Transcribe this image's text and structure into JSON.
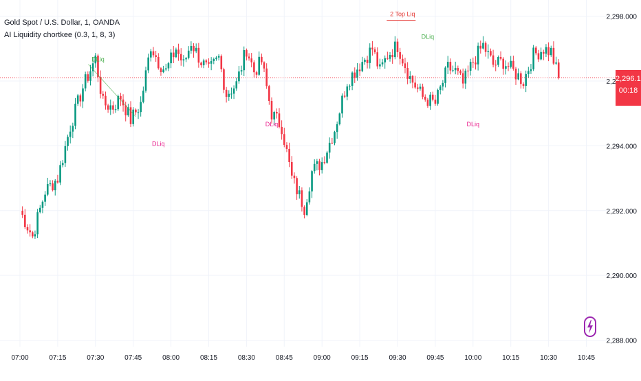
{
  "header": {
    "symbol_title": "Gold Spot / U.S. Dollar, 1, OANDA",
    "indicator_label": "AI Liquidity chortkee (0.3, 1, 8, 3)"
  },
  "price_tag": {
    "price": "2,296.100",
    "countdown": "00:18",
    "color": "#f23645"
  },
  "colors": {
    "up": "#089981",
    "down": "#f23645",
    "grid": "#f0f3fa",
    "dliq_green": "#4caf50",
    "dliq_pink": "#e91e8c",
    "bolt": "#9c27b0"
  },
  "icons": {
    "bolt": "lightning-bolt-icon"
  },
  "chart_data": {
    "type": "candlestick",
    "x_tick_labels": [
      "07:00",
      "07:15",
      "07:30",
      "07:45",
      "08:00",
      "08:15",
      "08:30",
      "08:45",
      "09:00",
      "09:15",
      "09:30",
      "09:45",
      "10:00",
      "10:15",
      "10:30",
      "10:45"
    ],
    "y_tick_labels": [
      "2,298.000",
      "2,296.000",
      "2,294.000",
      "2,292.000",
      "2,290.000",
      "2,288.000"
    ],
    "ylim": [
      2287.8,
      2298.5
    ],
    "grid": true,
    "last_price": 2296.1,
    "anchor_closes": [
      [
        0,
        2292.0
      ],
      [
        5,
        2291.2
      ],
      [
        10,
        2292.6
      ],
      [
        15,
        2293.0
      ],
      [
        20,
        2294.6
      ],
      [
        25,
        2295.8
      ],
      [
        30,
        2296.7
      ],
      [
        33,
        2295.3
      ],
      [
        37,
        2295.2
      ],
      [
        40,
        2295.5
      ],
      [
        44,
        2294.8
      ],
      [
        48,
        2295.3
      ],
      [
        52,
        2297.1
      ],
      [
        55,
        2296.6
      ],
      [
        58,
        2296.3
      ],
      [
        62,
        2297.0
      ],
      [
        65,
        2296.5
      ],
      [
        68,
        2297.2
      ],
      [
        72,
        2296.6
      ],
      [
        75,
        2296.3
      ],
      [
        79,
        2296.7
      ],
      [
        82,
        2295.6
      ],
      [
        86,
        2295.9
      ],
      [
        90,
        2297.0
      ],
      [
        93,
        2296.3
      ],
      [
        96,
        2296.6
      ],
      [
        100,
        2295.0
      ],
      [
        104,
        2294.6
      ],
      [
        108,
        2293.0
      ],
      [
        113,
        2292.1
      ],
      [
        116,
        2293.2
      ],
      [
        120,
        2293.5
      ],
      [
        125,
        2294.5
      ],
      [
        130,
        2296.0
      ],
      [
        135,
        2296.5
      ],
      [
        140,
        2297.0
      ],
      [
        143,
        2296.3
      ],
      [
        146,
        2296.8
      ],
      [
        150,
        2297.1
      ],
      [
        155,
        2296.1
      ],
      [
        160,
        2295.5
      ],
      [
        165,
        2295.3
      ],
      [
        170,
        2296.4
      ],
      [
        173,
        2296.3
      ],
      [
        176,
        2295.9
      ],
      [
        180,
        2296.6
      ],
      [
        184,
        2297.1
      ],
      [
        188,
        2296.5
      ],
      [
        192,
        2296.6
      ],
      [
        196,
        2296.3
      ],
      [
        200,
        2296.0
      ],
      [
        204,
        2296.8
      ],
      [
        208,
        2297.0
      ],
      [
        211,
        2296.9
      ],
      [
        214,
        2296.1
      ]
    ],
    "annotations": [
      {
        "text": "DLiq",
        "color": "green",
        "x_index": 31,
        "y": 2296.6,
        "line_to": [
          46,
          2294.9
        ]
      },
      {
        "text": "DLiq",
        "color": "pink",
        "x_index": 55,
        "y": 2294.0
      },
      {
        "text": "DLiq",
        "color": "pink",
        "x_index": 100,
        "y": 2294.6
      },
      {
        "text": "2 Top Liq",
        "color": "red",
        "x_index": 152,
        "y": 2298.0
      },
      {
        "text": "DLiq",
        "color": "green",
        "x_index": 162,
        "y": 2297.3
      },
      {
        "text": "DLiq",
        "color": "pink",
        "x_index": 180,
        "y": 2294.6
      }
    ]
  }
}
